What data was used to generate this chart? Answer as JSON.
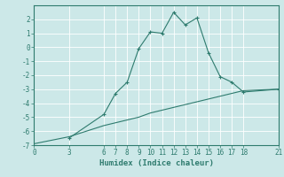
{
  "xlabel": "Humidex (Indice chaleur)",
  "bg_color": "#cce8e8",
  "grid_color": "#ffffff",
  "line_color": "#2e7b6e",
  "xlim": [
    0,
    21
  ],
  "ylim": [
    -7,
    3
  ],
  "xticks": [
    0,
    3,
    6,
    7,
    8,
    9,
    10,
    11,
    12,
    13,
    14,
    15,
    16,
    17,
    18,
    21
  ],
  "yticks": [
    -7,
    -6,
    -5,
    -4,
    -3,
    -2,
    -1,
    0,
    1,
    2
  ],
  "curve1_x": [
    3,
    6,
    7,
    8,
    9,
    10,
    11,
    12,
    13,
    14,
    15,
    16,
    17,
    18,
    21
  ],
  "curve1_y": [
    -6.5,
    -4.8,
    -3.3,
    -2.5,
    -0.1,
    1.1,
    1.0,
    2.5,
    1.6,
    2.1,
    -0.4,
    -2.1,
    -2.5,
    -3.2,
    -3.0
  ],
  "curve2_x": [
    0,
    3,
    6,
    7,
    8,
    9,
    10,
    11,
    12,
    13,
    14,
    15,
    16,
    17,
    18,
    21
  ],
  "curve2_y": [
    -6.9,
    -6.4,
    -5.6,
    -5.4,
    -5.2,
    -5.0,
    -4.7,
    -4.5,
    -4.3,
    -4.1,
    -3.9,
    -3.7,
    -3.5,
    -3.3,
    -3.1,
    -3.0
  ]
}
